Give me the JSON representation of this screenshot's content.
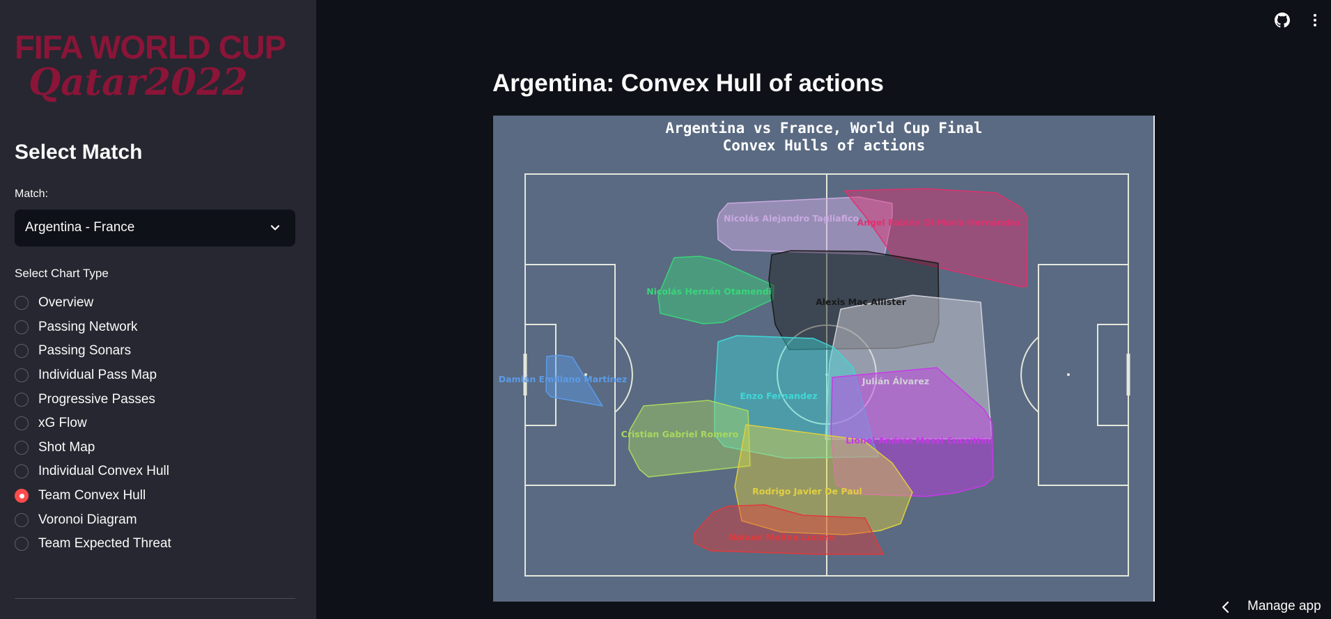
{
  "sidebar": {
    "logo_line1": "FIFA WORLD CUP",
    "logo_line2": "Qatar2022",
    "title": "Select Match",
    "match_label": "Match:",
    "match_value": "Argentina - France",
    "chart_type_label": "Select Chart Type",
    "chart_types": [
      {
        "label": "Overview",
        "selected": false
      },
      {
        "label": "Passing Network",
        "selected": false
      },
      {
        "label": "Passing Sonars",
        "selected": false
      },
      {
        "label": "Individual Pass Map",
        "selected": false
      },
      {
        "label": "Progressive Passes",
        "selected": false
      },
      {
        "label": "xG Flow",
        "selected": false
      },
      {
        "label": "Shot Map",
        "selected": false
      },
      {
        "label": "Individual Convex Hull",
        "selected": false
      },
      {
        "label": "Team Convex Hull",
        "selected": true
      },
      {
        "label": "Voronoi Diagram",
        "selected": false
      },
      {
        "label": "Team Expected Threat",
        "selected": false
      }
    ]
  },
  "main": {
    "title": "Argentina: Convex Hull of actions",
    "chart_title_line1": "Argentina vs France, World Cup Final",
    "chart_title_line2": "Convex Hulls of actions"
  },
  "toolbar": {
    "github_icon": "github-icon",
    "menu_icon": "more-vertical-icon",
    "manage_app_label": "Manage app"
  },
  "colors": {
    "accent": "#ff4b4b",
    "logo": "#8a1538",
    "pitch": "#5a6a82",
    "sidebar_bg": "#262730",
    "main_bg": "#0e1117"
  },
  "players": [
    {
      "name": "Nicolás Alejandro Tagliafico",
      "color": "#c9a9e0"
    },
    {
      "name": "Ángel Fabián Di María Hernández",
      "color": "#e0316f"
    },
    {
      "name": "Nicolás Hernán Otamendi",
      "color": "#3ad47a"
    },
    {
      "name": "Alexis Mac Allister",
      "color": "#1a1a1a"
    },
    {
      "name": "Damián Emiliano Martínez",
      "color": "#5b9be8"
    },
    {
      "name": "Julián Álvarez",
      "color": "#d0d0d8"
    },
    {
      "name": "Enzo Fernandez",
      "color": "#3fd8d8"
    },
    {
      "name": "Cristian Gabriel Romero",
      "color": "#a8d860"
    },
    {
      "name": "Lionel Andrés Messi Cuccittini",
      "color": "#c838e8"
    },
    {
      "name": "Rodrigo Javier De Paul",
      "color": "#e0d040"
    },
    {
      "name": "Nahuel Molina Lucero",
      "color": "#e03a3a"
    }
  ]
}
